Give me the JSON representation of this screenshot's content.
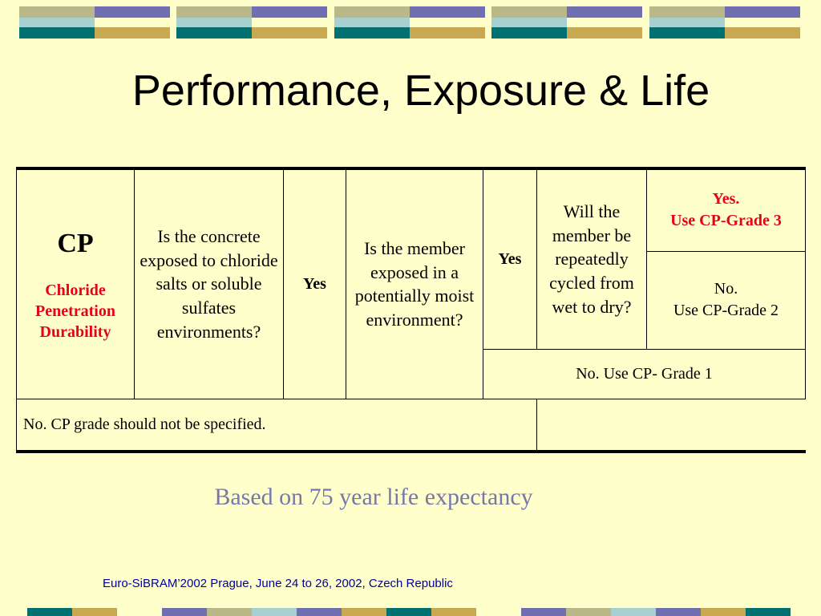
{
  "colors": {
    "background": "#FFFFCC",
    "accent_red": "#E8001C",
    "note_text": "#7777AA",
    "footer_text": "#000099",
    "band_purple": "#7070B0",
    "band_teal": "#007070",
    "band_gold": "#C8A850",
    "band_olive": "#B8B888",
    "band_light_blue": "#A8D0D0"
  },
  "slide": {
    "title": "Performance, Exposure & Life",
    "note": "Based on 75 year life expectancy",
    "footer": "Euro-SiBRAM’2002 Prague, June 24 to 26, 2002, Czech Republic"
  },
  "table": {
    "cp_label": "CP",
    "cp_subtitle_1": "Chloride",
    "cp_subtitle_2": "Penetration",
    "cp_subtitle_3": "Durability",
    "question_1": "Is the concrete exposed to chloride salts or soluble sulfates environments?",
    "answer_1": "Yes",
    "question_2": "Is the member exposed in a potentially moist environment?",
    "answer_2": "Yes",
    "question_3": "Will the member be repeatedly cycled from wet to dry?",
    "result_grade3_line1": "Yes.",
    "result_grade3_line2": "Use CP-Grade 3",
    "result_grade2_line1": "No.",
    "result_grade2_line2": "Use CP-Grade 2",
    "result_grade1": "No.  Use CP- Grade 1",
    "result_none": "No.  CP grade should not be specified."
  }
}
